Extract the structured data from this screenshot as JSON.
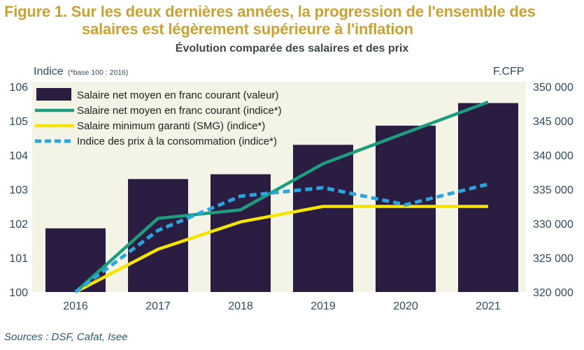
{
  "figure": {
    "title_line1": "Figure 1. Sur les deux dernières années, la progression de l'ensemble des",
    "title_line2": "salaires est légèrement supérieure à l'inflation",
    "sources": "Sources : DSF, Cafat, Isee"
  },
  "colors": {
    "title": "#c9a232",
    "bar": "#2b1d42",
    "green": "#1d9c7e",
    "yellow": "#f6e400",
    "blue": "#2aa6df",
    "panel": "#f3f3e6"
  },
  "chart_data": {
    "type": "bar",
    "title": "Évolution comparée des salaires et des prix",
    "ylabel_left": "Indice",
    "ylabel_left_note": "(*base 100 : 2016)",
    "ylabel_right": "F.CFP",
    "categories": [
      "2016",
      "2017",
      "2018",
      "2019",
      "2020",
      "2021"
    ],
    "y_left": {
      "ticks": [
        "100",
        "101",
        "102",
        "103",
        "104",
        "105",
        "106"
      ],
      "range": [
        100,
        106
      ]
    },
    "y_right": {
      "ticks": [
        "320 000",
        "325 000",
        "330 000",
        "335 000",
        "340 000",
        "345 000",
        "350 000"
      ],
      "range": [
        320000,
        350000
      ]
    },
    "bars": {
      "name": "Salaire net moyen en franc courant (valeur)",
      "axis": "right",
      "values": [
        329300,
        336500,
        337200,
        341500,
        344300,
        347600
      ]
    },
    "series": [
      {
        "name": "Salaire net moyen en franc courant (indice*)",
        "style": "green",
        "axis": "left",
        "values": [
          100.0,
          102.15,
          102.4,
          103.75,
          104.65,
          105.55
        ]
      },
      {
        "name": "Salaire minimum garanti (SMG) (indice*)",
        "style": "yellow",
        "axis": "left",
        "values": [
          100.0,
          101.25,
          102.05,
          102.5,
          102.5,
          102.5
        ]
      },
      {
        "name": "Indice des prix à la consommation (indice*)",
        "style": "dashed-blue",
        "axis": "left",
        "values": [
          100.0,
          101.8,
          102.8,
          103.05,
          102.55,
          103.15
        ]
      }
    ],
    "legend_position": "top-left",
    "grid": false
  }
}
